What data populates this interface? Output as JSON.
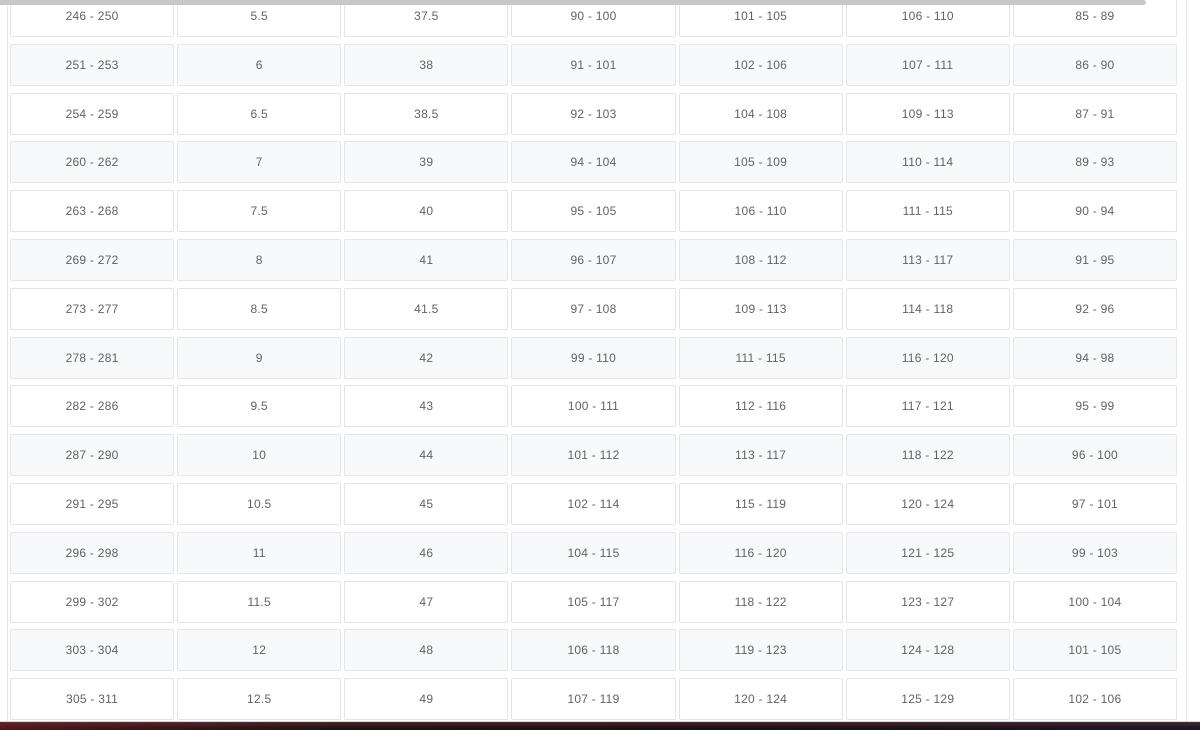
{
  "page": {
    "background": "#ffffff"
  },
  "scrollbar": {
    "orientation": "horizontal",
    "thumb_color": "#c5c7c9"
  },
  "table": {
    "columns_count": 7,
    "alt_row_color": "#f8f9fa",
    "border_color": "#e2e4e7",
    "text_color": "#5f6368",
    "rows": [
      [
        "246 - 250",
        "5.5",
        "37.5",
        "90 - 100",
        "101 - 105",
        "106 - 110",
        "85 - 89"
      ],
      [
        "251 - 253",
        "6",
        "38",
        "91 - 101",
        "102 - 106",
        "107 - 111",
        "86 - 90"
      ],
      [
        "254 - 259",
        "6.5",
        "38.5",
        "92 - 103",
        "104 - 108",
        "109 - 113",
        "87 - 91"
      ],
      [
        "260 - 262",
        "7",
        "39",
        "94 - 104",
        "105 - 109",
        "110 - 114",
        "89 - 93"
      ],
      [
        "263 - 268",
        "7.5",
        "40",
        "95 - 105",
        "106 - 110",
        "111 - 115",
        "90 - 94"
      ],
      [
        "269 - 272",
        "8",
        "41",
        "96 - 107",
        "108 - 112",
        "113 - 117",
        "91 - 95"
      ],
      [
        "273 - 277",
        "8.5",
        "41.5",
        "97 - 108",
        "109 - 113",
        "114 - 118",
        "92 - 96"
      ],
      [
        "278 - 281",
        "9",
        "42",
        "99 - 110",
        "111 - 115",
        "116 - 120",
        "94 - 98"
      ],
      [
        "282 - 286",
        "9.5",
        "43",
        "100 - 111",
        "112 - 116",
        "117 - 121",
        "95 - 99"
      ],
      [
        "287 - 290",
        "10",
        "44",
        "101 - 112",
        "113 - 117",
        "118 - 122",
        "96 - 100"
      ],
      [
        "291 - 295",
        "10.5",
        "45",
        "102 - 114",
        "115 - 119",
        "120 - 124",
        "97 - 101"
      ],
      [
        "296 - 298",
        "11",
        "46",
        "104 - 115",
        "116 - 120",
        "121 - 125",
        "99 - 103"
      ],
      [
        "299 - 302",
        "11.5",
        "47",
        "105 - 117",
        "118 - 122",
        "123 - 127",
        "100 - 104"
      ],
      [
        "303 - 304",
        "12",
        "48",
        "106 - 118",
        "119 - 123",
        "124 - 128",
        "101 - 105"
      ],
      [
        "305 - 311",
        "12.5",
        "49",
        "107 - 119",
        "120 - 124",
        "125 - 129",
        "102 - 106"
      ]
    ]
  },
  "bottom_bar": {
    "top_line_color": "#ddd4d4",
    "left_tint": "#4c2a30",
    "bottom_color": "#120d0e"
  }
}
